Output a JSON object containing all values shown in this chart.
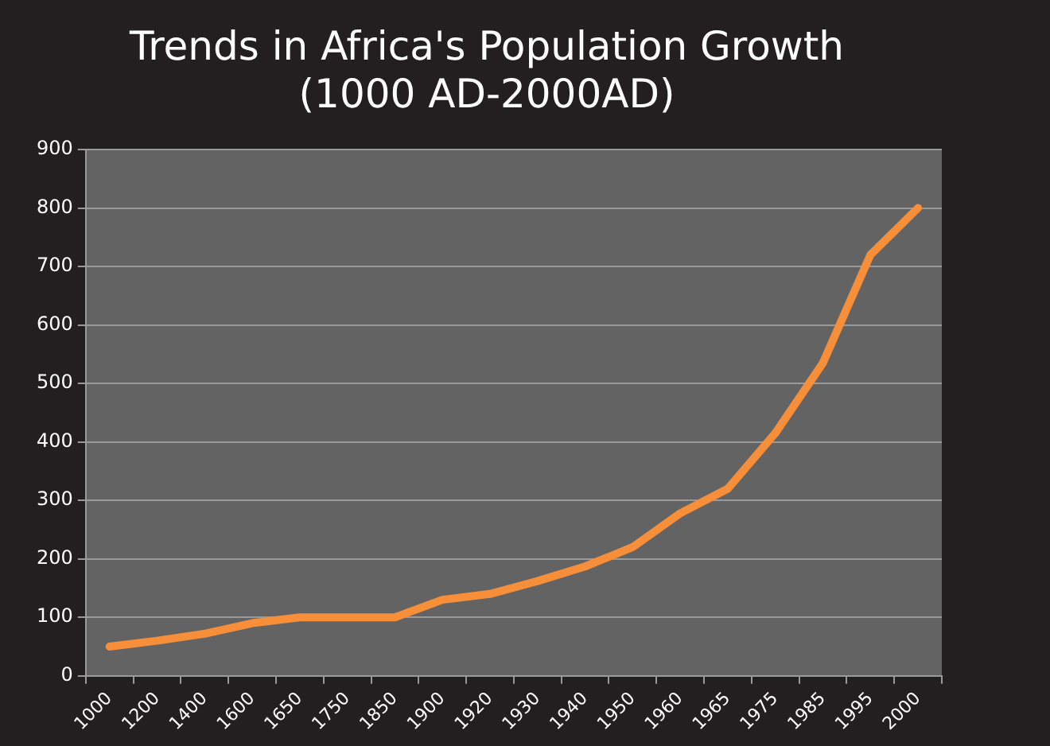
{
  "chart_data": {
    "type": "line",
    "title": "Trends in Africa's Population Growth\n(1000 AD-2000AD)",
    "categories": [
      "1000",
      "1200",
      "1400",
      "1600",
      "1650",
      "1750",
      "1850",
      "1900",
      "1920",
      "1930",
      "1940",
      "1950",
      "1960",
      "1965",
      "1975",
      "1985",
      "1995",
      "2000"
    ],
    "series": [
      {
        "color": "#f68e3a",
        "values": [
          50,
          60,
          72,
          90,
          100,
          100,
          100,
          130,
          140,
          162,
          187,
          220,
          278,
          320,
          415,
          535,
          720,
          800
        ]
      }
    ],
    "ylim": [
      0,
      900
    ],
    "yticks": [
      0,
      100,
      200,
      300,
      400,
      500,
      600,
      700,
      800,
      900
    ],
    "grid": "y",
    "legend": false,
    "marker": "none",
    "line_style": "solid"
  }
}
